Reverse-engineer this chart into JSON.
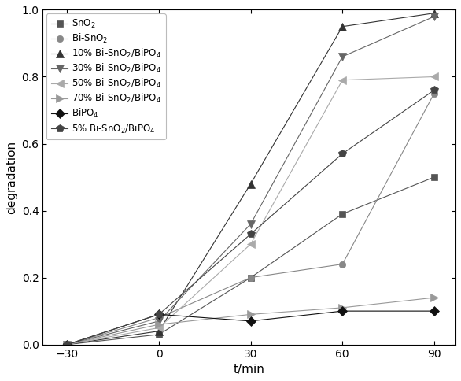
{
  "x": [
    -30,
    0,
    30,
    60,
    90
  ],
  "series": [
    {
      "label": "SnO$_2$",
      "values": [
        0.0,
        0.03,
        0.2,
        0.39,
        0.5
      ],
      "color": "#555555",
      "marker": "s",
      "markersize": 6,
      "linestyle": "-",
      "linewidth": 0.8
    },
    {
      "label": "Bi-SnO$_2$",
      "values": [
        0.0,
        0.08,
        0.2,
        0.24,
        0.75
      ],
      "color": "#888888",
      "marker": "o",
      "markersize": 6,
      "linestyle": "-",
      "linewidth": 0.8
    },
    {
      "label": "10% Bi-SnO$_2$/BiPO$_4$",
      "values": [
        0.0,
        0.04,
        0.48,
        0.95,
        0.99
      ],
      "color": "#333333",
      "marker": "^",
      "markersize": 7,
      "linestyle": "-",
      "linewidth": 0.8
    },
    {
      "label": "30% Bi-SnO$_2$/BiPO$_4$",
      "values": [
        0.0,
        0.07,
        0.36,
        0.86,
        0.98
      ],
      "color": "#666666",
      "marker": "v",
      "markersize": 7,
      "linestyle": "-",
      "linewidth": 0.8
    },
    {
      "label": "50% Bi-SnO$_2$/BiPO$_4$",
      "values": [
        0.0,
        0.05,
        0.3,
        0.79,
        0.8
      ],
      "color": "#aaaaaa",
      "marker": "<",
      "markersize": 7,
      "linestyle": "-",
      "linewidth": 0.8
    },
    {
      "label": "70% Bi-SnO$_2$/BiPO$_4$",
      "values": [
        0.0,
        0.06,
        0.09,
        0.11,
        0.14
      ],
      "color": "#999999",
      "marker": ">",
      "markersize": 7,
      "linestyle": "-",
      "linewidth": 0.8
    },
    {
      "label": "BiPO$_4$",
      "values": [
        0.0,
        0.09,
        0.07,
        0.1,
        0.1
      ],
      "color": "#111111",
      "marker": "D",
      "markersize": 6,
      "linestyle": "-",
      "linewidth": 0.8
    },
    {
      "label": "5% Bi-SnO$_2$/BiPO$_4$",
      "values": [
        0.0,
        0.09,
        0.33,
        0.57,
        0.76
      ],
      "color": "#444444",
      "marker": "p",
      "markersize": 7,
      "linestyle": "-",
      "linewidth": 0.8
    }
  ],
  "xlabel": "t/min",
  "ylabel": "degradation",
  "xlim": [
    -38,
    97
  ],
  "ylim": [
    0.0,
    1.0
  ],
  "xticks": [
    -30,
    0,
    30,
    60,
    90
  ],
  "yticks": [
    0.0,
    0.2,
    0.4,
    0.6,
    0.8,
    1.0
  ],
  "legend_fontsize": 8.5,
  "axis_fontsize": 11,
  "tick_fontsize": 10,
  "figsize": [
    5.86,
    4.84
  ],
  "dpi": 100
}
